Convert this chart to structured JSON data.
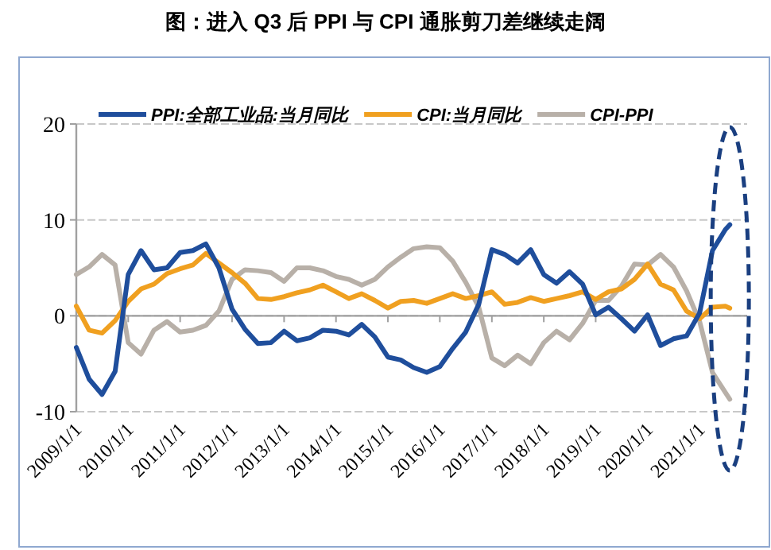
{
  "chart_data": {
    "type": "line",
    "title": "图：进入 Q3 后 PPI 与 CPI 通胀剪刀差继续走阔",
    "x": [
      "2009-01",
      "2009-04",
      "2009-07",
      "2009-10",
      "2010-01",
      "2010-04",
      "2010-07",
      "2010-10",
      "2011-01",
      "2011-04",
      "2011-07",
      "2011-10",
      "2012-01",
      "2012-04",
      "2012-07",
      "2012-10",
      "2013-01",
      "2013-04",
      "2013-07",
      "2013-10",
      "2014-01",
      "2014-04",
      "2014-07",
      "2014-10",
      "2015-01",
      "2015-04",
      "2015-07",
      "2015-10",
      "2016-01",
      "2016-04",
      "2016-07",
      "2016-10",
      "2017-01",
      "2017-04",
      "2017-07",
      "2017-10",
      "2018-01",
      "2018-04",
      "2018-07",
      "2018-10",
      "2019-01",
      "2019-04",
      "2019-07",
      "2019-10",
      "2020-01",
      "2020-04",
      "2020-07",
      "2020-10",
      "2021-01",
      "2021-04",
      "2021-07",
      "2021-08"
    ],
    "series": [
      {
        "name": "PPI:全部工业品:当月同比",
        "color": "#1f4e9c",
        "values": [
          -3.3,
          -6.6,
          -8.2,
          -5.8,
          4.3,
          6.8,
          4.8,
          5.0,
          6.6,
          6.8,
          7.5,
          5.0,
          0.7,
          -1.4,
          -2.9,
          -2.8,
          -1.6,
          -2.6,
          -2.3,
          -1.5,
          -1.6,
          -2.0,
          -0.9,
          -2.2,
          -4.3,
          -4.6,
          -5.4,
          -5.9,
          -5.3,
          -3.4,
          -1.7,
          1.2,
          6.9,
          6.4,
          5.5,
          6.9,
          4.3,
          3.4,
          4.6,
          3.3,
          0.1,
          0.9,
          -0.3,
          -1.6,
          0.1,
          -3.1,
          -2.4,
          -2.1,
          0.3,
          6.8,
          9.0,
          9.5
        ]
      },
      {
        "name": "CPI:当月同比",
        "color": "#f0a020",
        "values": [
          1.0,
          -1.5,
          -1.8,
          -0.5,
          1.5,
          2.8,
          3.3,
          4.4,
          4.9,
          5.3,
          6.5,
          5.5,
          4.5,
          3.4,
          1.8,
          1.7,
          2.0,
          2.4,
          2.7,
          3.2,
          2.5,
          1.8,
          2.3,
          1.6,
          0.8,
          1.5,
          1.6,
          1.3,
          1.8,
          2.3,
          1.8,
          2.1,
          2.5,
          1.2,
          1.4,
          1.9,
          1.5,
          1.8,
          2.1,
          2.5,
          1.7,
          2.5,
          2.8,
          3.8,
          5.4,
          3.3,
          2.7,
          0.5,
          -0.3,
          0.9,
          1.0,
          0.8
        ]
      },
      {
        "name": "CPI-PPI",
        "color": "#b8b0a8",
        "values": [
          4.3,
          5.1,
          6.4,
          5.3,
          -2.8,
          -4.0,
          -1.5,
          -0.6,
          -1.7,
          -1.5,
          -1.0,
          0.5,
          3.8,
          4.8,
          4.7,
          4.5,
          3.6,
          5.0,
          5.0,
          4.7,
          4.1,
          3.8,
          3.2,
          3.8,
          5.1,
          6.1,
          7.0,
          7.2,
          7.1,
          5.7,
          3.5,
          0.9,
          -4.4,
          -5.2,
          -4.1,
          -5.0,
          -2.8,
          -1.6,
          -2.5,
          -0.8,
          1.6,
          1.6,
          3.1,
          5.4,
          5.3,
          6.4,
          5.1,
          2.6,
          -0.6,
          -5.9,
          -8.0,
          -8.7
        ]
      }
    ],
    "xlim": [
      "2009-01",
      "2021-12"
    ],
    "xticks": [
      {
        "value": "2009-01-01",
        "label": "2009/1/1"
      },
      {
        "value": "2010-01-01",
        "label": "2010/1/1"
      },
      {
        "value": "2011-01-01",
        "label": "2011/1/1"
      },
      {
        "value": "2012-01-01",
        "label": "2012/1/1"
      },
      {
        "value": "2013-01-01",
        "label": "2013/1/1"
      },
      {
        "value": "2014-01-01",
        "label": "2014/1/1"
      },
      {
        "value": "2015-01-01",
        "label": "2015/1/1"
      },
      {
        "value": "2016-01-01",
        "label": "2016/1/1"
      },
      {
        "value": "2017-01-01",
        "label": "2017/1/1"
      },
      {
        "value": "2018-01-01",
        "label": "2018/1/1"
      },
      {
        "value": "2019-01-01",
        "label": "2019/1/1"
      },
      {
        "value": "2020-01-01",
        "label": "2020/1/1"
      },
      {
        "value": "2021-01-01",
        "label": "2021/1/1"
      }
    ],
    "ylim": [
      -10,
      20
    ],
    "yticks": [
      -10,
      0,
      10,
      20
    ],
    "grid": "y",
    "legend": "top",
    "marker": "none",
    "line_style": "solid"
  }
}
